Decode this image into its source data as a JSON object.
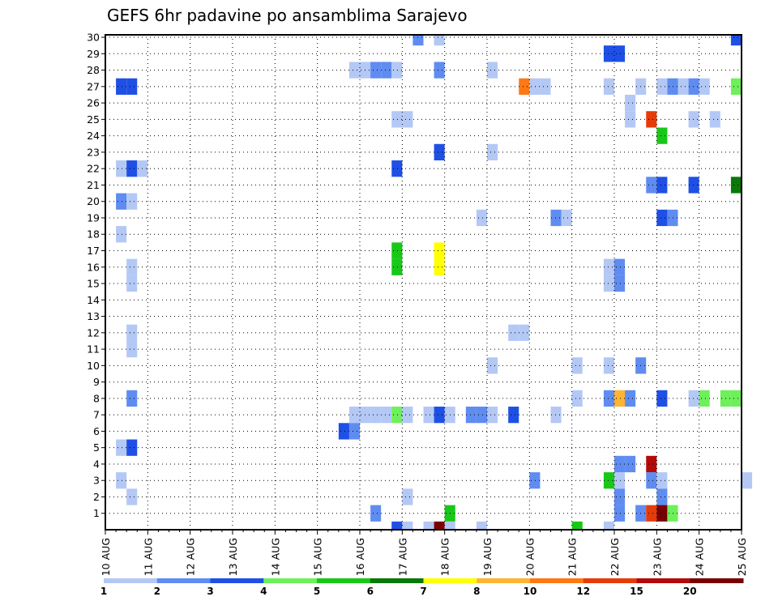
{
  "chart_data": {
    "type": "heatmap",
    "title": "GEFS 6hr padavine po ansamblima Sarajevo",
    "x_tick_labels": [
      "10 AUG",
      "11 AUG",
      "12 AUG",
      "13 AUG",
      "14 AUG",
      "15 AUG",
      "16 AUG",
      "17 AUG",
      "18 AUG",
      "19 AUG",
      "20 AUG",
      "21 AUG",
      "22 AUG",
      "23 AUG",
      "24 AUG",
      "25 AUG"
    ],
    "x_range_days": [
      0,
      15
    ],
    "time_step_hours": 6,
    "y_tick_labels": [
      "1",
      "2",
      "3",
      "4",
      "5",
      "6",
      "7",
      "8",
      "9",
      "10",
      "11",
      "12",
      "13",
      "14",
      "15",
      "16",
      "17",
      "18",
      "19",
      "20",
      "21",
      "22",
      "23",
      "24",
      "25",
      "26",
      "27",
      "28",
      "29",
      "30"
    ],
    "y_range": [
      0,
      30
    ],
    "grid": true,
    "colorbar": {
      "levels": [
        "1",
        "2",
        "3",
        "4",
        "5",
        "6",
        "7",
        "8",
        "10",
        "12",
        "15",
        "20"
      ],
      "colors": [
        "#b4c8f5",
        "#5f8cf0",
        "#1e50e6",
        "#6ef05a",
        "#18c818",
        "#0a780a",
        "#ffff00",
        "#ffb432",
        "#ff7814",
        "#e63c0a",
        "#b40a0a",
        "#780000"
      ]
    },
    "cells": [
      {
        "member": 30,
        "step": 29,
        "bin": 1
      },
      {
        "member": 30,
        "step": 31,
        "bin": 0
      },
      {
        "member": 30,
        "step": 59,
        "bin": 2
      },
      {
        "member": 29,
        "step": 47,
        "bin": 2
      },
      {
        "member": 29,
        "step": 48,
        "bin": 2
      },
      {
        "member": 28,
        "step": 23,
        "bin": 0
      },
      {
        "member": 28,
        "step": 24,
        "bin": 0
      },
      {
        "member": 28,
        "step": 25,
        "bin": 1
      },
      {
        "member": 28,
        "step": 26,
        "bin": 1
      },
      {
        "member": 28,
        "step": 27,
        "bin": 0
      },
      {
        "member": 28,
        "step": 31,
        "bin": 1
      },
      {
        "member": 28,
        "step": 36,
        "bin": 0
      },
      {
        "member": 27,
        "step": 1,
        "bin": 2
      },
      {
        "member": 27,
        "step": 2,
        "bin": 2
      },
      {
        "member": 27,
        "step": 39,
        "bin": 8
      },
      {
        "member": 27,
        "step": 40,
        "bin": 0
      },
      {
        "member": 27,
        "step": 41,
        "bin": 0
      },
      {
        "member": 27,
        "step": 47,
        "bin": 0
      },
      {
        "member": 27,
        "step": 50,
        "bin": 0
      },
      {
        "member": 27,
        "step": 52,
        "bin": 0
      },
      {
        "member": 27,
        "step": 53,
        "bin": 1
      },
      {
        "member": 27,
        "step": 54,
        "bin": 0
      },
      {
        "member": 27,
        "step": 55,
        "bin": 1
      },
      {
        "member": 27,
        "step": 56,
        "bin": 0
      },
      {
        "member": 27,
        "step": 59,
        "bin": 3
      },
      {
        "member": 26,
        "step": 49,
        "bin": 0
      },
      {
        "member": 25,
        "step": 27,
        "bin": 0
      },
      {
        "member": 25,
        "step": 28,
        "bin": 0
      },
      {
        "member": 25,
        "step": 49,
        "bin": 0
      },
      {
        "member": 25,
        "step": 51,
        "bin": 9
      },
      {
        "member": 25,
        "step": 55,
        "bin": 0
      },
      {
        "member": 25,
        "step": 57,
        "bin": 0
      },
      {
        "member": 24,
        "step": 52,
        "bin": 4
      },
      {
        "member": 23,
        "step": 31,
        "bin": 2
      },
      {
        "member": 23,
        "step": 36,
        "bin": 0
      },
      {
        "member": 22,
        "step": 1,
        "bin": 0
      },
      {
        "member": 22,
        "step": 2,
        "bin": 2
      },
      {
        "member": 22,
        "step": 3,
        "bin": 0
      },
      {
        "member": 22,
        "step": 27,
        "bin": 2
      },
      {
        "member": 21,
        "step": 51,
        "bin": 1
      },
      {
        "member": 21,
        "step": 52,
        "bin": 2
      },
      {
        "member": 21,
        "step": 55,
        "bin": 2
      },
      {
        "member": 21,
        "step": 59,
        "bin": 5
      },
      {
        "member": 20,
        "step": 1,
        "bin": 1
      },
      {
        "member": 20,
        "step": 2,
        "bin": 0
      },
      {
        "member": 19,
        "step": 35,
        "bin": 0
      },
      {
        "member": 19,
        "step": 42,
        "bin": 1
      },
      {
        "member": 19,
        "step": 43,
        "bin": 0
      },
      {
        "member": 19,
        "step": 52,
        "bin": 2
      },
      {
        "member": 19,
        "step": 53,
        "bin": 1
      },
      {
        "member": 18,
        "step": 1,
        "bin": 0
      },
      {
        "member": 17,
        "step": 27,
        "bin": 4
      },
      {
        "member": 17,
        "step": 31,
        "bin": 6
      },
      {
        "member": 16,
        "step": 27,
        "bin": 4
      },
      {
        "member": 16,
        "step": 31,
        "bin": 6
      },
      {
        "member": 16,
        "step": 2,
        "bin": 0
      },
      {
        "member": 16,
        "step": 47,
        "bin": 0
      },
      {
        "member": 16,
        "step": 48,
        "bin": 1
      },
      {
        "member": 15,
        "step": 2,
        "bin": 0
      },
      {
        "member": 15,
        "step": 47,
        "bin": 0
      },
      {
        "member": 15,
        "step": 48,
        "bin": 1
      },
      {
        "member": 12,
        "step": 2,
        "bin": 0
      },
      {
        "member": 12,
        "step": 38,
        "bin": 0
      },
      {
        "member": 12,
        "step": 39,
        "bin": 0
      },
      {
        "member": 11,
        "step": 2,
        "bin": 0
      },
      {
        "member": 10,
        "step": 36,
        "bin": 0
      },
      {
        "member": 10,
        "step": 44,
        "bin": 0
      },
      {
        "member": 10,
        "step": 47,
        "bin": 0
      },
      {
        "member": 10,
        "step": 50,
        "bin": 1
      },
      {
        "member": 8,
        "step": 2,
        "bin": 1
      },
      {
        "member": 8,
        "step": 44,
        "bin": 0
      },
      {
        "member": 8,
        "step": 47,
        "bin": 1
      },
      {
        "member": 8,
        "step": 48,
        "bin": 7
      },
      {
        "member": 8,
        "step": 49,
        "bin": 1
      },
      {
        "member": 8,
        "step": 52,
        "bin": 2
      },
      {
        "member": 8,
        "step": 55,
        "bin": 0
      },
      {
        "member": 8,
        "step": 56,
        "bin": 3
      },
      {
        "member": 8,
        "step": 58,
        "bin": 3
      },
      {
        "member": 8,
        "step": 59,
        "bin": 3
      },
      {
        "member": 7,
        "step": 23,
        "bin": 0
      },
      {
        "member": 7,
        "step": 24,
        "bin": 0
      },
      {
        "member": 7,
        "step": 25,
        "bin": 0
      },
      {
        "member": 7,
        "step": 26,
        "bin": 0
      },
      {
        "member": 7,
        "step": 27,
        "bin": 3
      },
      {
        "member": 7,
        "step": 28,
        "bin": 0
      },
      {
        "member": 7,
        "step": 30,
        "bin": 0
      },
      {
        "member": 7,
        "step": 31,
        "bin": 2
      },
      {
        "member": 7,
        "step": 32,
        "bin": 0
      },
      {
        "member": 7,
        "step": 34,
        "bin": 1
      },
      {
        "member": 7,
        "step": 35,
        "bin": 1
      },
      {
        "member": 7,
        "step": 36,
        "bin": 0
      },
      {
        "member": 7,
        "step": 38,
        "bin": 2
      },
      {
        "member": 7,
        "step": 42,
        "bin": 0
      },
      {
        "member": 6,
        "step": 22,
        "bin": 2
      },
      {
        "member": 6,
        "step": 23,
        "bin": 1
      },
      {
        "member": 5,
        "step": 1,
        "bin": 0
      },
      {
        "member": 5,
        "step": 2,
        "bin": 2
      },
      {
        "member": 4,
        "step": 48,
        "bin": 1
      },
      {
        "member": 4,
        "step": 49,
        "bin": 1
      },
      {
        "member": 4,
        "step": 51,
        "bin": 10
      },
      {
        "member": 3,
        "step": 1,
        "bin": 0
      },
      {
        "member": 3,
        "step": 40,
        "bin": 1
      },
      {
        "member": 3,
        "step": 47,
        "bin": 4
      },
      {
        "member": 3,
        "step": 48,
        "bin": 0
      },
      {
        "member": 3,
        "step": 51,
        "bin": 1
      },
      {
        "member": 3,
        "step": 52,
        "bin": 0
      },
      {
        "member": 3,
        "step": 60,
        "bin": 0
      },
      {
        "member": 2,
        "step": 2,
        "bin": 0
      },
      {
        "member": 2,
        "step": 28,
        "bin": 0
      },
      {
        "member": 2,
        "step": 48,
        "bin": 1
      },
      {
        "member": 2,
        "step": 52,
        "bin": 1
      },
      {
        "member": 1,
        "step": 25,
        "bin": 1
      },
      {
        "member": 1,
        "step": 32,
        "bin": 4
      },
      {
        "member": 1,
        "step": 48,
        "bin": 1
      },
      {
        "member": 1,
        "step": 50,
        "bin": 1
      },
      {
        "member": 1,
        "step": 51,
        "bin": 9
      },
      {
        "member": 1,
        "step": 52,
        "bin": 11
      },
      {
        "member": 1,
        "step": 53,
        "bin": 3
      },
      {
        "member": 0,
        "step": 27,
        "bin": 2
      },
      {
        "member": 0,
        "step": 28,
        "bin": 0
      },
      {
        "member": 0,
        "step": 30,
        "bin": 0
      },
      {
        "member": 0,
        "step": 31,
        "bin": 11
      },
      {
        "member": 0,
        "step": 32,
        "bin": 0
      },
      {
        "member": 0,
        "step": 35,
        "bin": 0
      },
      {
        "member": 0,
        "step": 44,
        "bin": 4
      },
      {
        "member": 0,
        "step": 47,
        "bin": 0
      }
    ]
  }
}
